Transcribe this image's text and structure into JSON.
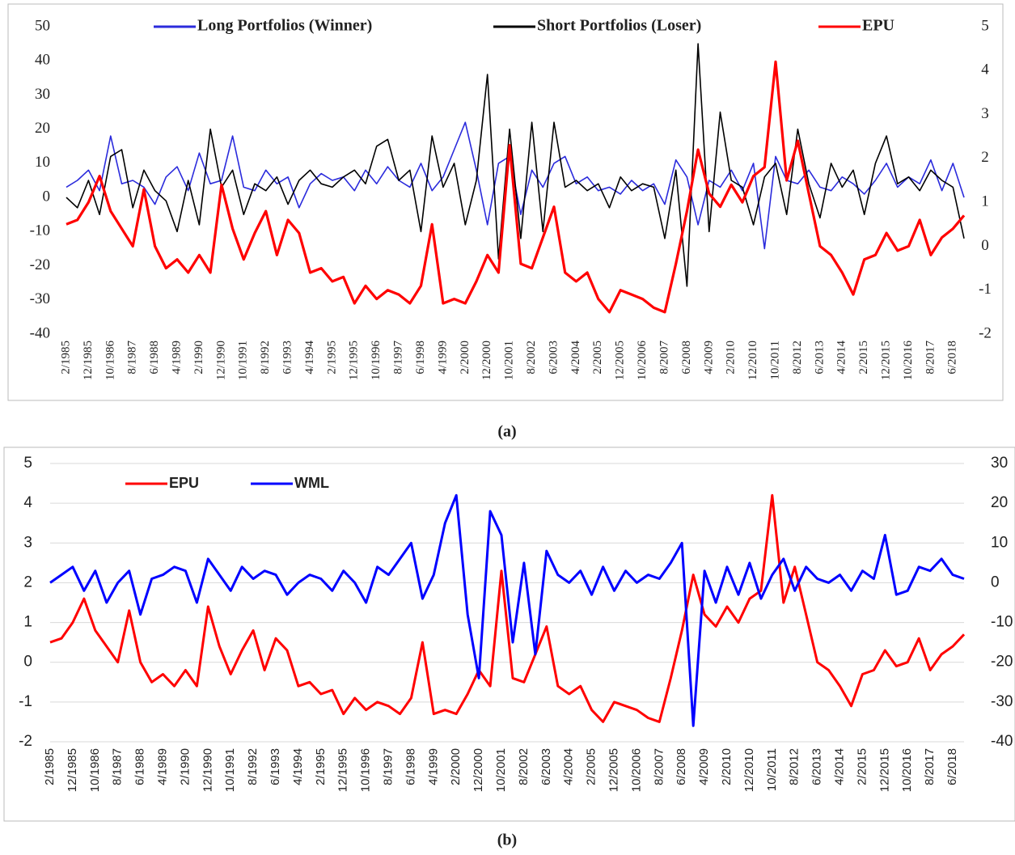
{
  "chart_data": [
    {
      "type": "line",
      "categories": [
        "2/1985",
        null,
        "12/1985",
        null,
        "10/1986",
        null,
        "8/1987",
        null,
        "6/1988",
        null,
        "4/1989",
        null,
        "2/1990",
        null,
        "12/1990",
        null,
        "10/1991",
        null,
        "8/1992",
        null,
        "6/1993",
        null,
        "4/1994",
        null,
        "2/1995",
        null,
        "12/1995",
        null,
        "10/1996",
        null,
        "8/1997",
        null,
        "6/1998",
        null,
        "4/1999",
        null,
        "2/2000",
        null,
        "12/2000",
        null,
        "10/2001",
        null,
        "8/2002",
        null,
        "6/2003",
        null,
        "4/2004",
        null,
        "2/2005",
        null,
        "12/2005",
        null,
        "10/2006",
        null,
        "8/2007",
        null,
        "6/2008",
        null,
        "4/2009",
        null,
        "2/2010",
        null,
        "12/2010",
        null,
        "10/2011",
        null,
        "8/2012",
        null,
        "6/2013",
        null,
        "4/2014",
        null,
        "2/2015",
        null,
        "12/2015",
        null,
        "10/2016",
        null,
        "8/2017",
        null,
        "6/2018",
        null
      ],
      "series": [
        {
          "name": "Long Portfolios (Winner)",
          "color": "#2b2bdc",
          "values": [
            3,
            5,
            8,
            2,
            18,
            4,
            5,
            3,
            -2,
            6,
            9,
            2,
            13,
            4,
            5,
            18,
            3,
            2,
            8,
            4,
            6,
            -3,
            4,
            7,
            5,
            6,
            2,
            8,
            4,
            9,
            5,
            3,
            10,
            2,
            6,
            14,
            22,
            8,
            -8,
            10,
            12,
            -5,
            8,
            3,
            10,
            12,
            4,
            6,
            2,
            3,
            1,
            5,
            2,
            4,
            -2,
            11,
            6,
            -8,
            5,
            3,
            8,
            2,
            10,
            -15,
            12,
            5,
            4,
            8,
            3,
            2,
            6,
            4,
            1,
            5,
            10,
            3,
            6,
            4,
            11,
            2,
            10,
            0
          ]
        },
        {
          "name": "Short Portfolios (Loser)",
          "color": "#000000",
          "values": [
            0,
            -3,
            5,
            -5,
            12,
            14,
            -3,
            8,
            2,
            -1,
            -10,
            5,
            -8,
            20,
            3,
            8,
            -5,
            4,
            2,
            6,
            -2,
            5,
            8,
            4,
            3,
            6,
            8,
            4,
            15,
            17,
            5,
            8,
            -10,
            18,
            3,
            10,
            -8,
            5,
            36,
            -18,
            20,
            -12,
            22,
            -10,
            22,
            3,
            5,
            2,
            4,
            -3,
            6,
            2,
            4,
            3,
            -12,
            8,
            -26,
            45,
            -10,
            25,
            5,
            3,
            -8,
            6,
            10,
            -5,
            20,
            4,
            -6,
            10,
            3,
            8,
            -5,
            10,
            18,
            4,
            6,
            2,
            8,
            5,
            3,
            -12
          ]
        },
        {
          "name": "EPU",
          "color": "#ff0000",
          "axis": "y2",
          "values": [
            0.5,
            0.6,
            1.0,
            1.6,
            0.8,
            0.4,
            0.0,
            1.3,
            0.0,
            -0.5,
            -0.3,
            -0.6,
            -0.2,
            -0.6,
            1.4,
            0.4,
            -0.3,
            0.3,
            0.8,
            -0.2,
            0.6,
            0.3,
            -0.6,
            -0.5,
            -0.8,
            -0.7,
            -1.3,
            -0.9,
            -1.2,
            -1.0,
            -1.1,
            -1.3,
            -0.9,
            0.5,
            -1.3,
            -1.2,
            -1.3,
            -0.8,
            -0.2,
            -0.6,
            2.3,
            -0.4,
            -0.5,
            0.2,
            0.9,
            -0.6,
            -0.8,
            -0.6,
            -1.2,
            -1.5,
            -1.0,
            -1.1,
            -1.2,
            -1.4,
            -1.5,
            -0.4,
            0.8,
            2.2,
            1.2,
            0.9,
            1.4,
            1.0,
            1.6,
            1.8,
            4.2,
            1.5,
            2.4,
            1.2,
            0.0,
            -0.2,
            -0.6,
            -1.1,
            -0.3,
            -0.2,
            0.3,
            -0.1,
            0.0,
            0.6,
            -0.2,
            0.2,
            0.4,
            0.7
          ]
        }
      ],
      "ylim": [
        -40,
        50
      ],
      "yticks": [
        -40,
        -30,
        -20,
        -10,
        0,
        10,
        20,
        30,
        40,
        50
      ],
      "y2lim": [
        -2,
        5
      ],
      "y2ticks": [
        -2,
        -1,
        0,
        1,
        2,
        3,
        4,
        5
      ],
      "grid": false,
      "legend": "top"
    },
    {
      "type": "line",
      "categories": [
        "2/1985",
        null,
        "12/1985",
        null,
        "10/1986",
        null,
        "8/1987",
        null,
        "6/1988",
        null,
        "4/1989",
        null,
        "2/1990",
        null,
        "12/1990",
        null,
        "10/1991",
        null,
        "8/1992",
        null,
        "6/1993",
        null,
        "4/1994",
        null,
        "2/1995",
        null,
        "12/1995",
        null,
        "10/1996",
        null,
        "8/1997",
        null,
        "6/1998",
        null,
        "4/1999",
        null,
        "2/2000",
        null,
        "12/2000",
        null,
        "10/2001",
        null,
        "8/2002",
        null,
        "6/2003",
        null,
        "4/2004",
        null,
        "2/2005",
        null,
        "12/2005",
        null,
        "10/2006",
        null,
        "8/2007",
        null,
        "6/2008",
        null,
        "4/2009",
        null,
        "2/2010",
        null,
        "12/2010",
        null,
        "10/2011",
        null,
        "8/2012",
        null,
        "6/2013",
        null,
        "4/2014",
        null,
        "2/2015",
        null,
        "12/2015",
        null,
        "10/2016",
        null,
        "8/2017",
        null,
        "6/2018",
        null
      ],
      "series": [
        {
          "name": "EPU",
          "color": "#ff0000",
          "values": [
            0.5,
            0.6,
            1.0,
            1.6,
            0.8,
            0.4,
            0.0,
            1.3,
            0.0,
            -0.5,
            -0.3,
            -0.6,
            -0.2,
            -0.6,
            1.4,
            0.4,
            -0.3,
            0.3,
            0.8,
            -0.2,
            0.6,
            0.3,
            -0.6,
            -0.5,
            -0.8,
            -0.7,
            -1.3,
            -0.9,
            -1.2,
            -1.0,
            -1.1,
            -1.3,
            -0.9,
            0.5,
            -1.3,
            -1.2,
            -1.3,
            -0.8,
            -0.2,
            -0.6,
            2.3,
            -0.4,
            -0.5,
            0.2,
            0.9,
            -0.6,
            -0.8,
            -0.6,
            -1.2,
            -1.5,
            -1.0,
            -1.1,
            -1.2,
            -1.4,
            -1.5,
            -0.4,
            0.8,
            2.2,
            1.2,
            0.9,
            1.4,
            1.0,
            1.6,
            1.8,
            4.2,
            1.5,
            2.4,
            1.2,
            0.0,
            -0.2,
            -0.6,
            -1.1,
            -0.3,
            -0.2,
            0.3,
            -0.1,
            0.0,
            0.6,
            -0.2,
            0.2,
            0.4,
            0.7
          ]
        },
        {
          "name": "WML",
          "color": "#0000ff",
          "axis": "y2",
          "values": [
            0,
            2,
            4,
            -2,
            3,
            -5,
            0,
            3,
            -8,
            1,
            2,
            4,
            3,
            -5,
            6,
            2,
            -2,
            4,
            1,
            3,
            2,
            -3,
            0,
            2,
            1,
            -2,
            3,
            0,
            -5,
            4,
            2,
            6,
            10,
            -4,
            2,
            15,
            22,
            -8,
            -24,
            18,
            12,
            -15,
            5,
            -18,
            8,
            2,
            0,
            3,
            -3,
            4,
            -2,
            3,
            0,
            2,
            1,
            5,
            10,
            -36,
            3,
            -5,
            4,
            -3,
            5,
            -4,
            2,
            6,
            -2,
            4,
            1,
            0,
            2,
            -2,
            3,
            1,
            12,
            -3,
            -2,
            4,
            3,
            6,
            2,
            1
          ]
        }
      ],
      "ylim": [
        -2,
        5
      ],
      "yticks": [
        -2,
        -1,
        0,
        1,
        2,
        3,
        4,
        5
      ],
      "y2lim": [
        -40,
        30
      ],
      "y2ticks": [
        -40,
        -30,
        -20,
        -10,
        0,
        10,
        20,
        30
      ],
      "grid": true,
      "legend": "top-left"
    }
  ],
  "panel_labels": [
    "(a)",
    "(b)"
  ]
}
